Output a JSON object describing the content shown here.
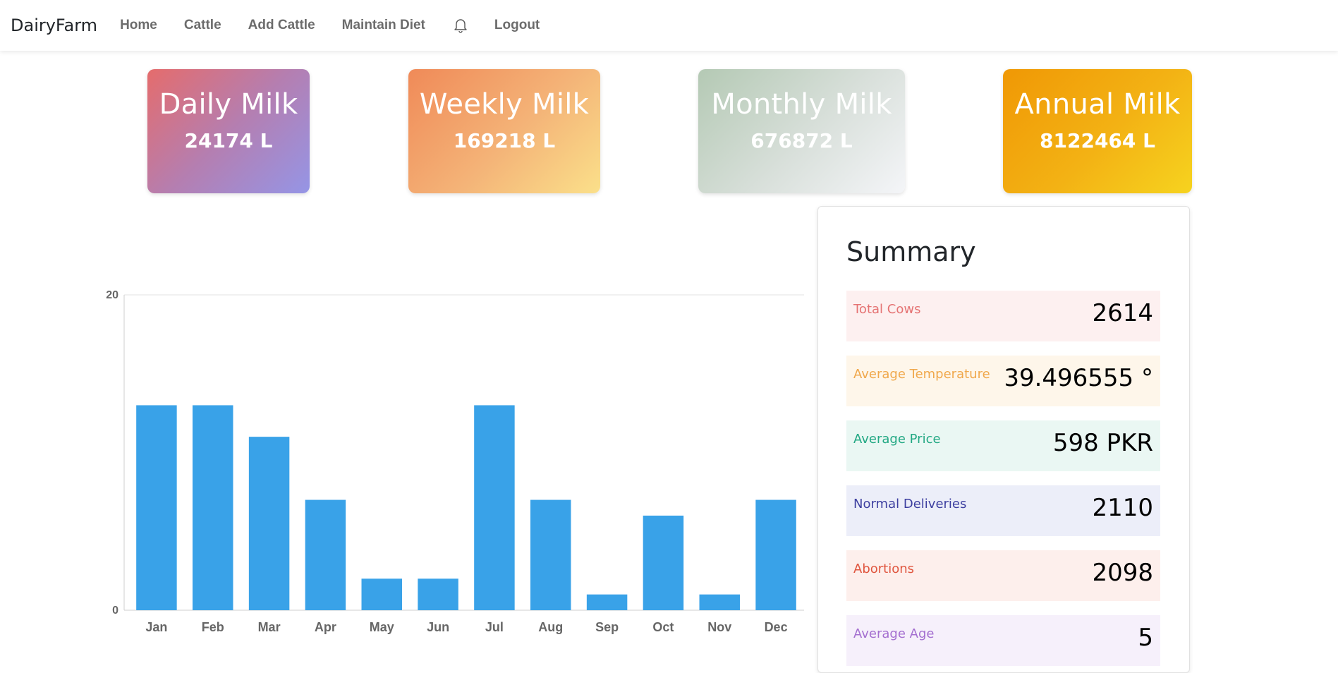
{
  "nav": {
    "brand": "DairyFarm",
    "links": [
      "Home",
      "Cattle",
      "Add Cattle",
      "Maintain Diet"
    ],
    "logout": "Logout",
    "icon": "bell-icon"
  },
  "cards": [
    {
      "title": "Daily Milk",
      "value": "24174 L"
    },
    {
      "title": "Weekly Milk",
      "value": "169218 L"
    },
    {
      "title": "Monthly Milk",
      "value": "676872 L"
    },
    {
      "title": "Annual Milk",
      "value": "8122464 L"
    }
  ],
  "summary": {
    "title": "Summary",
    "items": [
      {
        "label": "Total Cows",
        "value": "2614",
        "bg": "#fdf0f0",
        "color": "#e57373"
      },
      {
        "label": "Average Temperature",
        "value": "39.496555 °",
        "bg": "#fef6ea",
        "color": "#f0a84c"
      },
      {
        "label": "Average Price",
        "value": "598 PKR",
        "bg": "#eaf7f3",
        "color": "#22a883"
      },
      {
        "label": "Normal Deliveries",
        "value": "2110",
        "bg": "#eceef9",
        "color": "#3d3fa0"
      },
      {
        "label": "Abortions",
        "value": "2098",
        "bg": "#fdefec",
        "color": "#e0563f"
      },
      {
        "label": "Average Age",
        "value": "5",
        "bg": "#f6f0fb",
        "color": "#a46fd0"
      }
    ]
  },
  "chart_data": {
    "type": "bar",
    "categories": [
      "Jan",
      "Feb",
      "Mar",
      "Apr",
      "May",
      "Jun",
      "Jul",
      "Aug",
      "Sep",
      "Oct",
      "Nov",
      "Dec"
    ],
    "values": [
      13,
      13,
      11,
      7,
      2,
      2,
      13,
      7,
      1,
      6,
      1,
      7
    ],
    "ylim": [
      0,
      20
    ],
    "yticks": [
      "0",
      "20"
    ],
    "bar_color": "#39a2e8",
    "grid": true
  }
}
